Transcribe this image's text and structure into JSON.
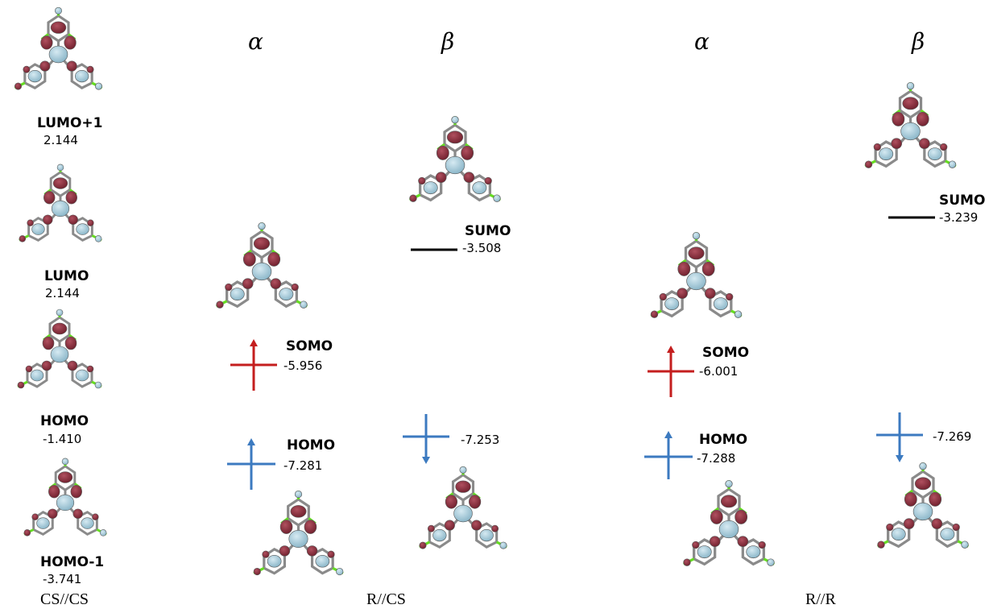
{
  "columns": [
    {
      "id": "cs-cs",
      "method": "CS//CS"
    },
    {
      "id": "r-cs",
      "method": "R//CS",
      "spins": [
        "α",
        "β"
      ]
    },
    {
      "id": "r-r",
      "method": "R//R",
      "spins": [
        "α",
        "β"
      ]
    }
  ],
  "cs_orbitals": [
    {
      "label": "LUMO+1",
      "energy": "2.144"
    },
    {
      "label": "LUMO",
      "energy": "2.144"
    },
    {
      "label": "HOMO",
      "energy": "-1.410"
    },
    {
      "label": "HOMO-1",
      "energy": "-3.741"
    }
  ],
  "rcs": {
    "alpha_somo": {
      "label": "SOMO",
      "energy": "-5.956"
    },
    "alpha_homo": {
      "label": "HOMO",
      "energy": "-7.281"
    },
    "beta_sumo": {
      "label": "SUMO",
      "energy": "-3.508"
    },
    "beta_homo": {
      "energy": "-7.253"
    }
  },
  "rr": {
    "alpha_somo": {
      "label": "SOMO",
      "energy": "-6.001"
    },
    "alpha_homo": {
      "label": "HOMO",
      "energy": "-7.288"
    },
    "beta_sumo": {
      "label": "SUMO",
      "energy": "-3.239"
    },
    "beta_homo": {
      "energy": "-7.269"
    }
  },
  "colors": {
    "lobe_positive": "#7d2634",
    "lobe_negative": "#9cc4d4",
    "alpha_somo_arrow": "#c41e1e",
    "electron_arrow": "#3c7ac0",
    "unoccupied_level": "#000000",
    "bond_stick": "#8a8a8a",
    "halogen_stick": "#66dd22"
  },
  "icons": {
    "orbital_isosurface": "molecular-orbital-icon",
    "spin_up": "spin-up-arrow-icon",
    "spin_down": "spin-down-arrow-icon"
  }
}
